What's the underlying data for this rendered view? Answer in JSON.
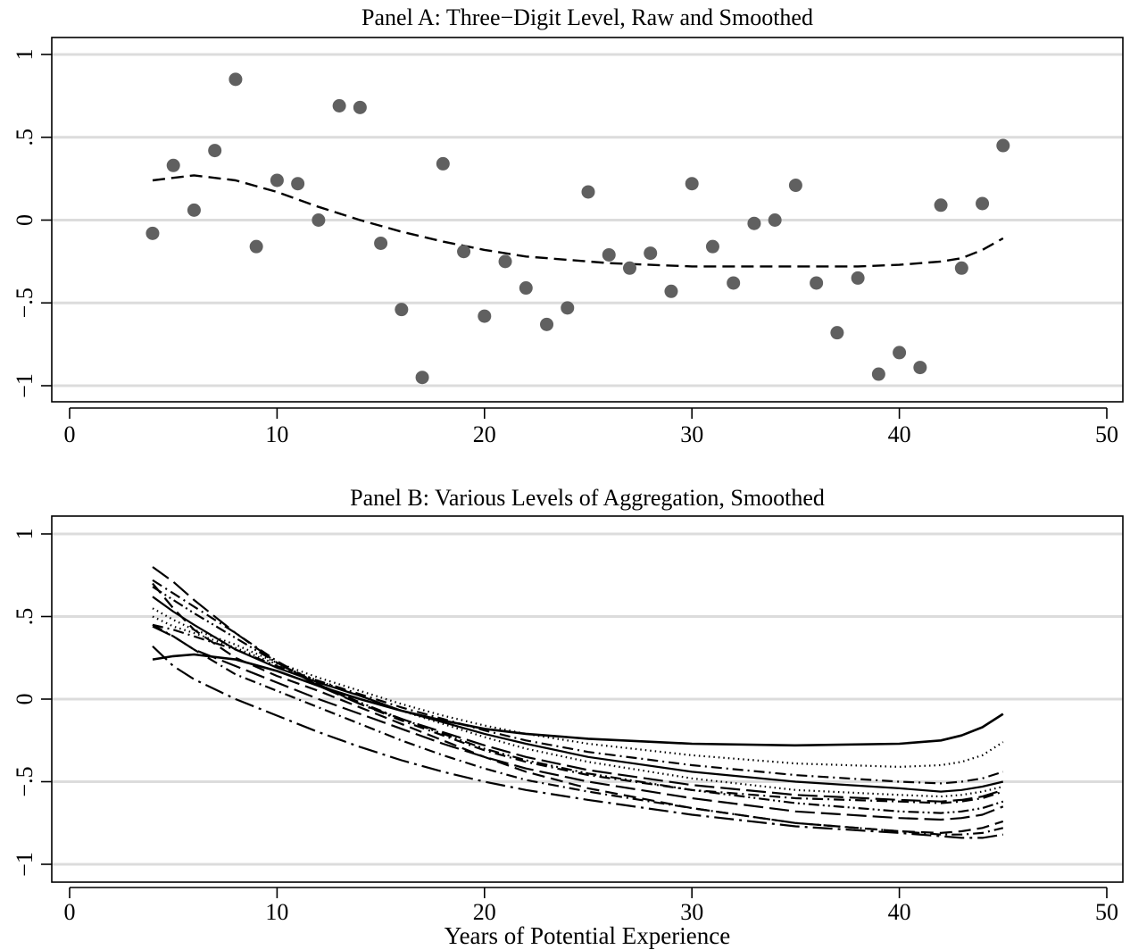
{
  "chart_data": [
    {
      "type": "scatter",
      "title": "Panel A: Three−Digit Level, Raw and Smoothed",
      "xlabel": "",
      "ylabel": "",
      "xlim": [
        0,
        50
      ],
      "ylim": [
        -1,
        1
      ],
      "xticks": [
        0,
        10,
        20,
        30,
        40,
        50
      ],
      "yticks": [
        -1,
        -0.5,
        0,
        0.5,
        1
      ],
      "xtick_labels": [
        "0",
        "10",
        "20",
        "30",
        "40",
        "50"
      ],
      "ytick_labels": [
        "−1",
        "−.5",
        "0",
        ".5",
        "1"
      ],
      "grid": true,
      "colors": {
        "points": "#606060",
        "line": "#000000",
        "grid": "#dcdcdc"
      },
      "points": [
        [
          4,
          -0.08
        ],
        [
          5,
          0.33
        ],
        [
          6,
          0.06
        ],
        [
          7,
          0.42
        ],
        [
          8,
          0.85
        ],
        [
          9,
          -0.16
        ],
        [
          10,
          0.24
        ],
        [
          11,
          0.22
        ],
        [
          12,
          0.0
        ],
        [
          13,
          0.69
        ],
        [
          14,
          0.68
        ],
        [
          15,
          -0.14
        ],
        [
          16,
          -0.54
        ],
        [
          17,
          -0.95
        ],
        [
          18,
          0.34
        ],
        [
          19,
          -0.19
        ],
        [
          20,
          -0.58
        ],
        [
          21,
          -0.25
        ],
        [
          22,
          -0.41
        ],
        [
          23,
          -0.63
        ],
        [
          24,
          -0.53
        ],
        [
          25,
          0.17
        ],
        [
          26,
          -0.21
        ],
        [
          27,
          -0.29
        ],
        [
          28,
          -0.2
        ],
        [
          29,
          -0.43
        ],
        [
          30,
          0.22
        ],
        [
          31,
          -0.16
        ],
        [
          32,
          -0.38
        ],
        [
          33,
          -0.02
        ],
        [
          34,
          0.0
        ],
        [
          35,
          0.21
        ],
        [
          36,
          -0.38
        ],
        [
          37,
          -0.68
        ],
        [
          38,
          -0.35
        ],
        [
          39,
          -0.93
        ],
        [
          40,
          -0.8
        ],
        [
          41,
          -0.89
        ],
        [
          42,
          0.09
        ],
        [
          43,
          -0.29
        ],
        [
          44,
          0.1
        ],
        [
          45,
          0.45
        ]
      ],
      "smoothed": {
        "x": [
          4,
          6,
          8,
          10,
          12,
          14,
          16,
          18,
          20,
          22,
          24,
          26,
          28,
          30,
          32,
          34,
          36,
          38,
          40,
          42,
          43,
          44,
          45
        ],
        "y": [
          0.24,
          0.27,
          0.24,
          0.17,
          0.08,
          0.0,
          -0.07,
          -0.13,
          -0.18,
          -0.22,
          -0.24,
          -0.26,
          -0.27,
          -0.28,
          -0.28,
          -0.28,
          -0.28,
          -0.28,
          -0.27,
          -0.25,
          -0.23,
          -0.18,
          -0.11
        ],
        "style": "dashed"
      }
    },
    {
      "type": "line",
      "title": "Panel B: Various Levels of Aggregation, Smoothed",
      "xlabel": "Years of Potential Experience",
      "ylabel": "",
      "xlim": [
        0,
        50
      ],
      "ylim": [
        -1,
        1
      ],
      "xticks": [
        0,
        10,
        20,
        30,
        40,
        50
      ],
      "yticks": [
        -1,
        -0.5,
        0,
        0.5,
        1
      ],
      "xtick_labels": [
        "0",
        "10",
        "20",
        "30",
        "40",
        "50"
      ],
      "ytick_labels": [
        "−1",
        "−.5",
        "0",
        ".5",
        "1"
      ],
      "grid": true,
      "colors": {
        "lines": "#000000",
        "grid": "#dcdcdc"
      },
      "x": [
        4,
        5,
        6,
        8,
        10,
        12,
        14,
        16,
        18,
        20,
        22,
        25,
        30,
        35,
        40,
        42,
        43,
        44,
        45
      ],
      "series": [
        {
          "style": "solid",
          "values": [
            0.24,
            0.26,
            0.27,
            0.24,
            0.17,
            0.08,
            0.0,
            -0.07,
            -0.13,
            -0.18,
            -0.21,
            -0.24,
            -0.27,
            -0.28,
            -0.27,
            -0.25,
            -0.22,
            -0.17,
            -0.09
          ]
        },
        {
          "style": "dotted",
          "values": [
            0.55,
            0.48,
            0.42,
            0.33,
            0.22,
            0.13,
            0.05,
            -0.03,
            -0.1,
            -0.16,
            -0.21,
            -0.27,
            -0.34,
            -0.39,
            -0.41,
            -0.4,
            -0.38,
            -0.34,
            -0.26
          ]
        },
        {
          "style": "dashdot",
          "values": [
            0.45,
            0.42,
            0.38,
            0.3,
            0.2,
            0.11,
            0.03,
            -0.05,
            -0.12,
            -0.19,
            -0.25,
            -0.32,
            -0.4,
            -0.46,
            -0.5,
            -0.51,
            -0.5,
            -0.48,
            -0.44
          ]
        },
        {
          "style": "solid",
          "values": [
            0.62,
            0.53,
            0.45,
            0.3,
            0.19,
            0.1,
            0.02,
            -0.07,
            -0.14,
            -0.21,
            -0.27,
            -0.35,
            -0.44,
            -0.5,
            -0.54,
            -0.56,
            -0.55,
            -0.53,
            -0.5
          ]
        },
        {
          "style": "dotted",
          "values": [
            0.5,
            0.44,
            0.4,
            0.31,
            0.21,
            0.11,
            0.02,
            -0.07,
            -0.15,
            -0.23,
            -0.3,
            -0.38,
            -0.48,
            -0.55,
            -0.58,
            -0.59,
            -0.58,
            -0.56,
            -0.53
          ]
        },
        {
          "style": "longdash",
          "values": [
            0.8,
            0.71,
            0.6,
            0.4,
            0.22,
            0.08,
            -0.03,
            -0.12,
            -0.2,
            -0.28,
            -0.35,
            -0.43,
            -0.52,
            -0.58,
            -0.61,
            -0.62,
            -0.61,
            -0.59,
            -0.55
          ]
        },
        {
          "style": "dashdot",
          "values": [
            0.72,
            0.64,
            0.56,
            0.4,
            0.23,
            0.09,
            -0.03,
            -0.13,
            -0.22,
            -0.31,
            -0.38,
            -0.46,
            -0.55,
            -0.6,
            -0.62,
            -0.63,
            -0.62,
            -0.6,
            -0.56
          ]
        },
        {
          "style": "dashdotdot",
          "values": [
            0.68,
            0.6,
            0.52,
            0.37,
            0.22,
            0.09,
            -0.02,
            -0.12,
            -0.21,
            -0.3,
            -0.37,
            -0.45,
            -0.55,
            -0.63,
            -0.68,
            -0.69,
            -0.68,
            -0.66,
            -0.62
          ]
        },
        {
          "style": "longdash",
          "values": [
            0.44,
            0.38,
            0.3,
            0.2,
            0.1,
            0.0,
            -0.09,
            -0.18,
            -0.27,
            -0.35,
            -0.42,
            -0.5,
            -0.6,
            -0.68,
            -0.72,
            -0.73,
            -0.72,
            -0.7,
            -0.65
          ]
        },
        {
          "style": "dashed",
          "values": [
            0.7,
            0.55,
            0.42,
            0.25,
            0.14,
            0.05,
            -0.05,
            -0.15,
            -0.25,
            -0.35,
            -0.44,
            -0.54,
            -0.66,
            -0.75,
            -0.8,
            -0.81,
            -0.8,
            -0.78,
            -0.74
          ]
        },
        {
          "style": "dashdot",
          "values": [
            0.45,
            0.38,
            0.3,
            0.15,
            0.05,
            -0.05,
            -0.15,
            -0.25,
            -0.34,
            -0.42,
            -0.49,
            -0.56,
            -0.66,
            -0.75,
            -0.8,
            -0.82,
            -0.82,
            -0.81,
            -0.78
          ]
        },
        {
          "style": "longdashdot",
          "values": [
            0.32,
            0.2,
            0.12,
            0.0,
            -0.1,
            -0.2,
            -0.29,
            -0.37,
            -0.44,
            -0.5,
            -0.55,
            -0.61,
            -0.7,
            -0.77,
            -0.81,
            -0.83,
            -0.84,
            -0.84,
            -0.82
          ]
        }
      ]
    }
  ]
}
